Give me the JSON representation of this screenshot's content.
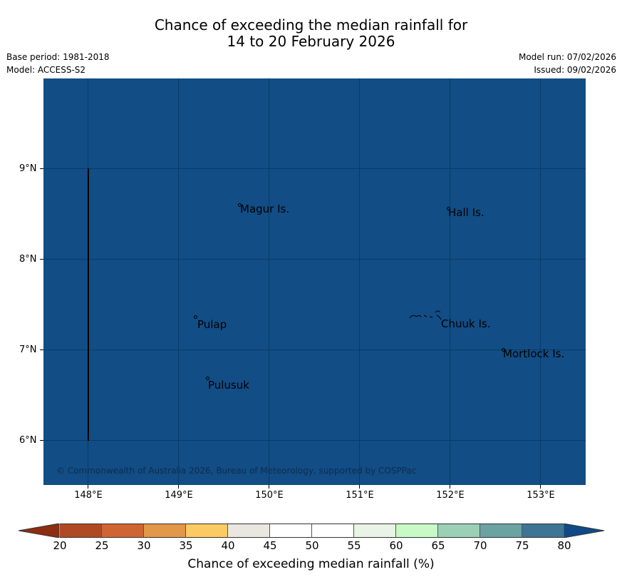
{
  "title": {
    "line1": "Chance of exceeding the median rainfall for",
    "line2": "14 to 20 February 2026"
  },
  "meta": {
    "base_period": "Base period: 1981-2018",
    "model": "Model: ACCESS-S2",
    "model_run": "Model run: 07/02/2026",
    "issued": "Issued: 09/02/2026"
  },
  "map": {
    "background_color": "#124d85",
    "latitude_labels": [
      "9°N",
      "8°N",
      "7°N",
      "6°N"
    ],
    "longitude_labels": [
      "148°E",
      "149°E",
      "150°E",
      "151°E",
      "152°E",
      "153°E"
    ],
    "places": [
      {
        "name": "Magur Is."
      },
      {
        "name": "Hall Is."
      },
      {
        "name": "Pulap"
      },
      {
        "name": "Chuuk Is."
      },
      {
        "name": "Mortlock Is."
      },
      {
        "name": "Pulusuk"
      }
    ],
    "copyright": "© Commonwealth of Australia 2026, Bureau of Meteorology, supported by COSPPac"
  },
  "colorbar": {
    "label": "Chance of exceeding median rainfall (%)",
    "ticks": [
      "20",
      "25",
      "30",
      "35",
      "40",
      "45",
      "50",
      "55",
      "60",
      "65",
      "70",
      "75",
      "80"
    ],
    "under_color": "#8c2d12",
    "over_color": "#0f4a87",
    "colors": [
      "#b04a24",
      "#cf6532",
      "#e39748",
      "#fcca62",
      "#eae6e0",
      "#ffffff",
      "#ffffff",
      "#e9f3e6",
      "#c8f9c6",
      "#9bd0b7",
      "#6aa3a2",
      "#3d7594"
    ]
  }
}
